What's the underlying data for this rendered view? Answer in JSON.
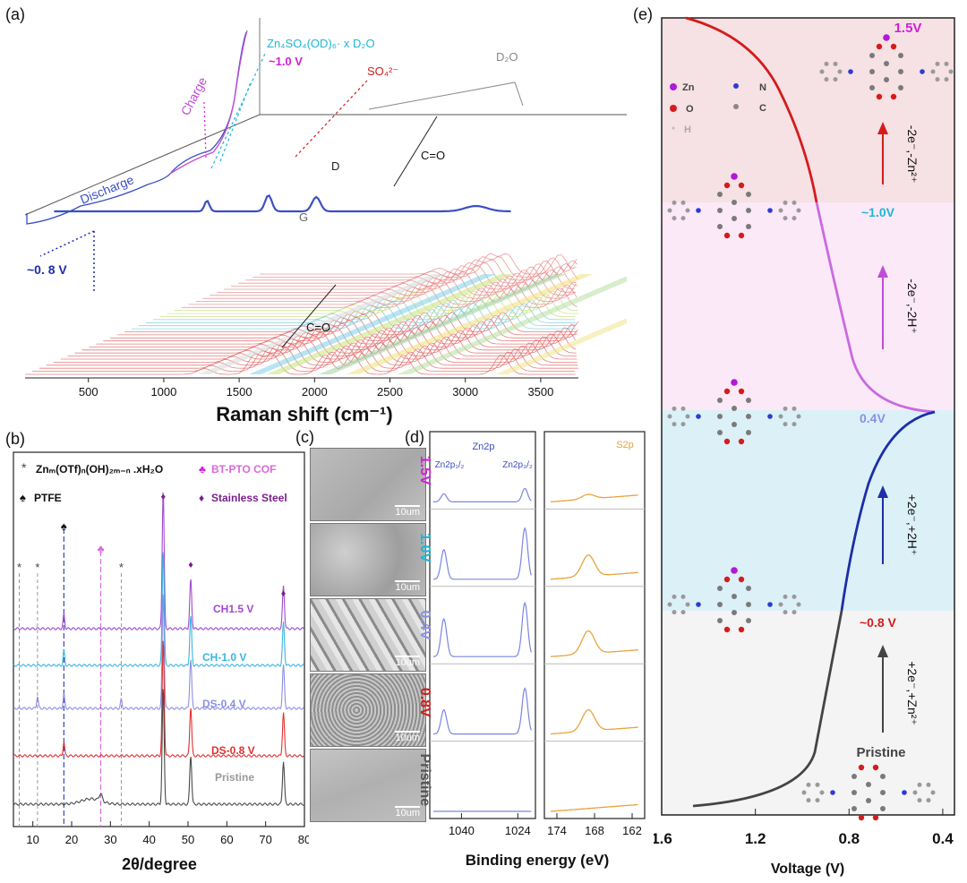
{
  "panel_labels": {
    "a": "(a)",
    "b": "(b)",
    "c": "(c)",
    "d": "(d)",
    "e": "(e)"
  },
  "colors": {
    "discharge": "#3b4fc4",
    "charge": "#c24bd6",
    "cyan": "#1fb5d6",
    "magenta": "#d21ed9",
    "red": "#d41c1c",
    "grey": "#888888",
    "dark": "#333333",
    "navy": "#1b2fa8",
    "orange": "#e8a33c",
    "ds04": "#8c8fe3",
    "ch10": "#3ab6e0",
    "ch15": "#a04bd0",
    "ds08": "#e03030",
    "pristine": "#4a4a4a",
    "bg_pink": "#f6e1e4",
    "bg_lilac": "#fbe9f7",
    "bg_cyan": "#dcf0f8",
    "bg_grey": "#f4f4f4"
  },
  "chart_data": [
    {
      "id": "a",
      "type": "line",
      "xlabel": "Raman shift (cm⁻¹)",
      "xlim": [
        80,
        3750
      ],
      "xticks": [
        500,
        1000,
        1500,
        2000,
        2500,
        3000,
        3500
      ],
      "annotations": {
        "zn_species": "Zn₄SO₄(OD)₆· x D₂O",
        "v10": "~1.0 V",
        "so4": "SO₄²⁻",
        "d2o": "D₂O",
        "co_top": "C=O",
        "co_bottom": "C=O",
        "peak_d": "D",
        "peak_g": "G",
        "discharge": "Discharge",
        "charge": "Charge",
        "v08": "~0. 8 V"
      },
      "peaks": [
        1270,
        1605,
        1720,
        2070,
        2250,
        2590,
        3240
      ]
    },
    {
      "id": "b",
      "type": "line",
      "xlabel": "2θ/degree",
      "xlim": [
        5,
        80
      ],
      "xticks": [
        10,
        20,
        30,
        40,
        50,
        60,
        70,
        80
      ],
      "legend": {
        "zn_salt": "Znₘ(OTf)ₙ(OH)₂ₘ₋ₙ .xH₂O",
        "cof": "BT-PTO COF",
        "ptfe": "PTFE",
        "steel": "Stainless Steel"
      },
      "series": [
        {
          "name": "CH1.5 V",
          "color": "#a04bd0"
        },
        {
          "name": "CH-1.0 V",
          "color": "#3ab6e0"
        },
        {
          "name": "DS-0.4 V",
          "color": "#8c8fe3"
        },
        {
          "name": "DS-0.8 V",
          "color": "#e03030"
        },
        {
          "name": "Pristine",
          "color": "#4a4a4a"
        }
      ],
      "markers": {
        "zn_salt_x": [
          6.5,
          11.2,
          32.8
        ],
        "ptfe_x": [
          18.0
        ],
        "cof_x": [
          27.5
        ],
        "steel_x": [
          43.6,
          50.7,
          74.6
        ]
      }
    },
    {
      "id": "c",
      "type": "table",
      "scale_bar": "10um",
      "rows": [
        "1.5V",
        "1.0V",
        "0.4V",
        "0.8V",
        "Pristine"
      ]
    },
    {
      "id": "d",
      "type": "line",
      "xlabel": "Binding energy (eV)",
      "zn_panel": {
        "title": "Zn2p",
        "xlim": [
          1049,
          1019
        ],
        "xticks": [
          1040,
          1024
        ],
        "peak_labels": [
          "Zn2p₁/₂",
          "Zn2p₃/₂"
        ]
      },
      "s_panel": {
        "title": "S2p",
        "xlim": [
          176,
          160
        ],
        "xticks": [
          174,
          168,
          162
        ]
      },
      "rows": [
        {
          "label": "1.5V",
          "color": "#d21ed9",
          "zn": [
            0.15,
            0.25
          ],
          "s": 0.15
        },
        {
          "label": "1.0V",
          "color": "#1fb5d6",
          "zn": [
            0.55,
            0.95
          ],
          "s": 0.7
        },
        {
          "label": "0.4V",
          "color": "#8c8fe3",
          "zn": [
            0.7,
            1.0
          ],
          "s": 0.75
        },
        {
          "label": "0.8V",
          "color": "#d41c1c",
          "zn": [
            0.45,
            0.85
          ],
          "s": 0.7
        },
        {
          "label": "Pristine",
          "color": "#555555",
          "zn": [
            0,
            0
          ],
          "s": 0
        }
      ]
    },
    {
      "id": "e",
      "type": "line",
      "xlabel": "Voltage (V)",
      "xlim": [
        1.6,
        0.35
      ],
      "xticks": [
        1.6,
        1.2,
        0.8,
        0.4
      ],
      "levels": {
        "v15": "1.5V",
        "v10": "~1.0V",
        "v04": "0.4V",
        "v08": "~0.8 V",
        "pristine": "Pristine"
      },
      "steps": {
        "s4": "-2e⁻,-Zn²⁺",
        "s3": "-2e⁻,-2H⁺",
        "s2": "+2e⁻,+2H⁺",
        "s1": "+2e⁻,+Zn²⁺"
      },
      "atom_legend": [
        "Zn",
        "N",
        "O",
        "C",
        "H"
      ]
    }
  ]
}
